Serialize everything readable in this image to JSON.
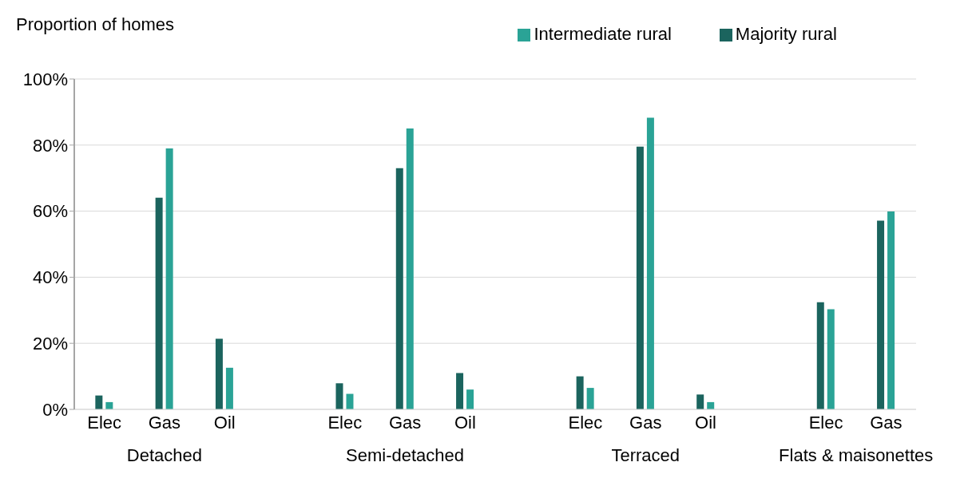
{
  "chart_data": {
    "type": "bar",
    "ylabel": "Proportion of homes",
    "categories": [
      "Elec",
      "Gas",
      "Oil",
      null,
      "Elec",
      "Gas",
      "Oil",
      null,
      "Elec",
      "Gas",
      "Oil",
      null,
      "Elec",
      "Gas"
    ],
    "annotations": [
      "Detached",
      "Semi-detached",
      "Terraced",
      "Flats & maisonettes"
    ],
    "series": [
      {
        "name": "Majority rural",
        "color": "#1b645e",
        "values": [
          4.2,
          64.1,
          21.4,
          null,
          7.9,
          73,
          11,
          null,
          10,
          79.5,
          4.5,
          null,
          32.4,
          57.1
        ]
      },
      {
        "name": "Intermediate rural",
        "color": "#2aa396",
        "values": [
          2.2,
          79,
          12.6,
          null,
          4.7,
          85,
          6,
          null,
          6.5,
          88.3,
          2.2,
          null,
          30.3,
          59.9
        ]
      }
    ],
    "ylim": [
      0,
      100
    ],
    "yticks": [
      {
        "value": 0,
        "label": "0%"
      },
      {
        "value": 20,
        "label": "20%"
      },
      {
        "value": 40,
        "label": "40%"
      },
      {
        "value": 60,
        "label": "60%"
      },
      {
        "value": 80,
        "label": "80%"
      },
      {
        "value": 100,
        "label": "100%"
      }
    ],
    "grid": "y",
    "legend": "top right"
  }
}
